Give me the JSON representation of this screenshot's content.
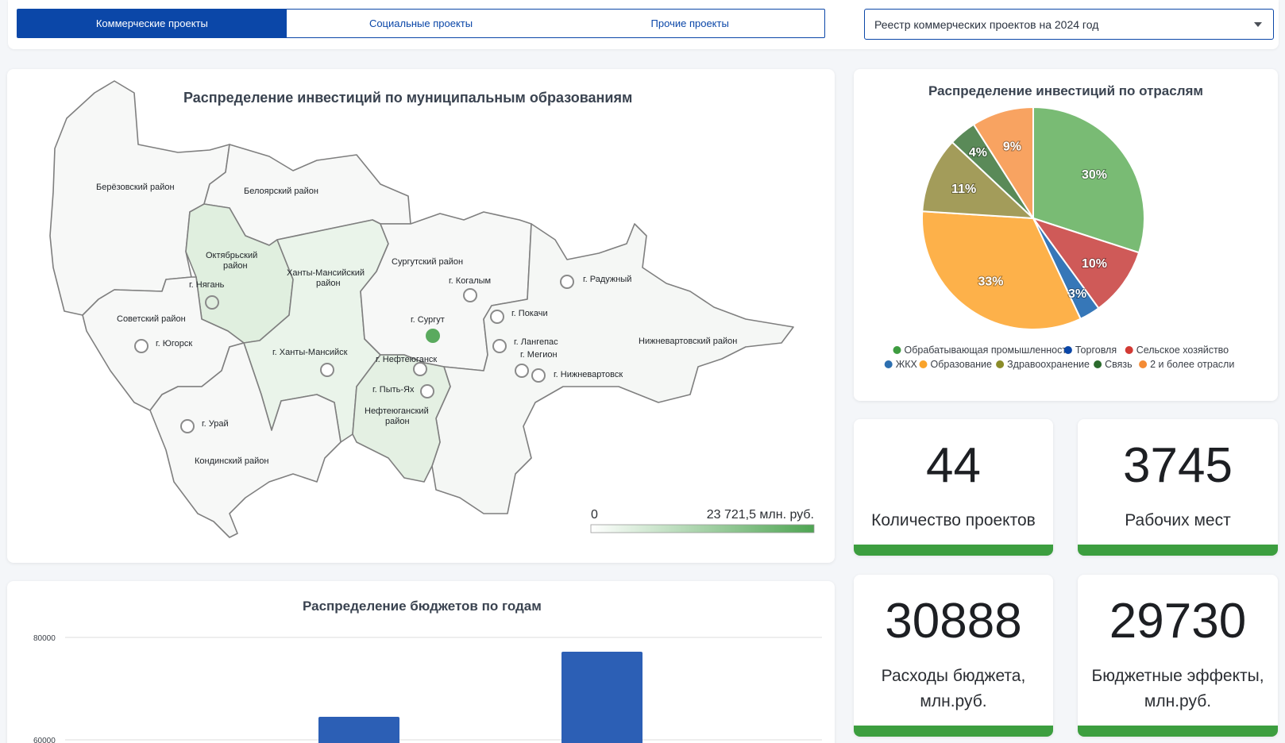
{
  "tabs": [
    {
      "label": "Коммерческие проекты",
      "active": true
    },
    {
      "label": "Социальные проекты",
      "active": false
    },
    {
      "label": "Прочие проекты",
      "active": false
    }
  ],
  "registry_select": {
    "value": "Реестр коммерческих проектов на 2024 год"
  },
  "map": {
    "title": "Распределение инвестиций по муниципальным образованиям",
    "regions": {
      "berezovsky": "Берёзовский район",
      "beloyarsky": "Белоярский район",
      "oktyabrsky": [
        "Октябрьский",
        "район"
      ],
      "khmao_district": [
        "Ханты-Мансийский",
        "район"
      ],
      "surgutsky": "Сургутский район",
      "sovetsky": "Советский район",
      "kondinsky": "Кондинский район",
      "nefteyugansky": [
        "Нефтеюганский",
        "район"
      ],
      "nizhnevartovsky": "Нижневартовский район"
    },
    "cities": {
      "nyagan": "г. Нягань",
      "yugorsk": "г. Югорск",
      "uray": "г. Урай",
      "khanty_mansiysk": "г. Ханты-Мансийск",
      "nefteyugansk": "г. Нефтеюганск",
      "pyt_yakh": "г. Пыть-Ях",
      "surgut": "г. Сургут",
      "kogalym": "г. Когалым",
      "raduzhny": "г. Радужный",
      "pokachi": "г. Покачи",
      "langepas": "г. Лангепас",
      "megion": "г. Мегион",
      "nizhnevartovsk": "г. Нижневартовск"
    },
    "scale": {
      "min": "0",
      "max": "23 721,5 млн. руб."
    },
    "colors": {
      "low": "#f4f7f4",
      "mid": "#e2f0e1",
      "high": "#5aaa5e",
      "stroke": "#7d7d7d"
    }
  },
  "pie": {
    "title": "Распределение инвестиций по отраслям",
    "chart_data": {
      "type": "pie",
      "slices": [
        {
          "name": "Обрабатывающая промышленность",
          "value": 30,
          "label": "30%",
          "color": "#79bb74"
        },
        {
          "name": "Сельское хозяйство",
          "value": 10,
          "label": "10%",
          "color": "#cf5a58"
        },
        {
          "name": "Торговля",
          "value": 3,
          "label": "3%",
          "color": "#3677b8"
        },
        {
          "name": "Образование",
          "value": 33,
          "label": "33%",
          "color": "#fdb14a"
        },
        {
          "name": "Здравоохранение",
          "value": 11,
          "label": "11%",
          "color": "#a39c5a"
        },
        {
          "name": "Связь",
          "value": 4,
          "label": "4%",
          "color": "#5a8a58"
        },
        {
          "name": "2 и более отрасли",
          "value": 9,
          "label": "9%",
          "color": "#f8a361"
        }
      ],
      "legend_rows": [
        [
          {
            "name": "Обрабатывающая промышленность",
            "color": "#3e9c40"
          },
          {
            "name": "Торговля",
            "color": "#0b47a8"
          },
          {
            "name": "Сельское хозяйство",
            "color": "#d23a34"
          }
        ],
        [
          {
            "name": "ЖКХ",
            "color": "#2d6fb0"
          },
          {
            "name": "Образование",
            "color": "#f9a32b"
          },
          {
            "name": "Здравоохранение",
            "color": "#8b8c2a"
          },
          {
            "name": "Связь",
            "color": "#2b6b2d"
          },
          {
            "name": "2 и более отрасли",
            "color": "#f48b35"
          }
        ]
      ]
    }
  },
  "kpis": [
    {
      "value": "44",
      "label": "Количество проектов"
    },
    {
      "value": "3745",
      "label": "Рабочих мест"
    },
    {
      "value": "30888",
      "label": "Расходы бюджета, млн.руб."
    },
    {
      "value": "29730",
      "label": "Бюджетные эффекты, млн.руб."
    }
  ],
  "bar": {
    "title": "Распределение бюджетов по годам",
    "chart_data": {
      "type": "bar",
      "ylim": [
        60000,
        80000
      ],
      "yticks": [
        "80000",
        "60000"
      ],
      "values": [
        64500,
        77200
      ],
      "bar_color": "#2c5fb5"
    }
  }
}
